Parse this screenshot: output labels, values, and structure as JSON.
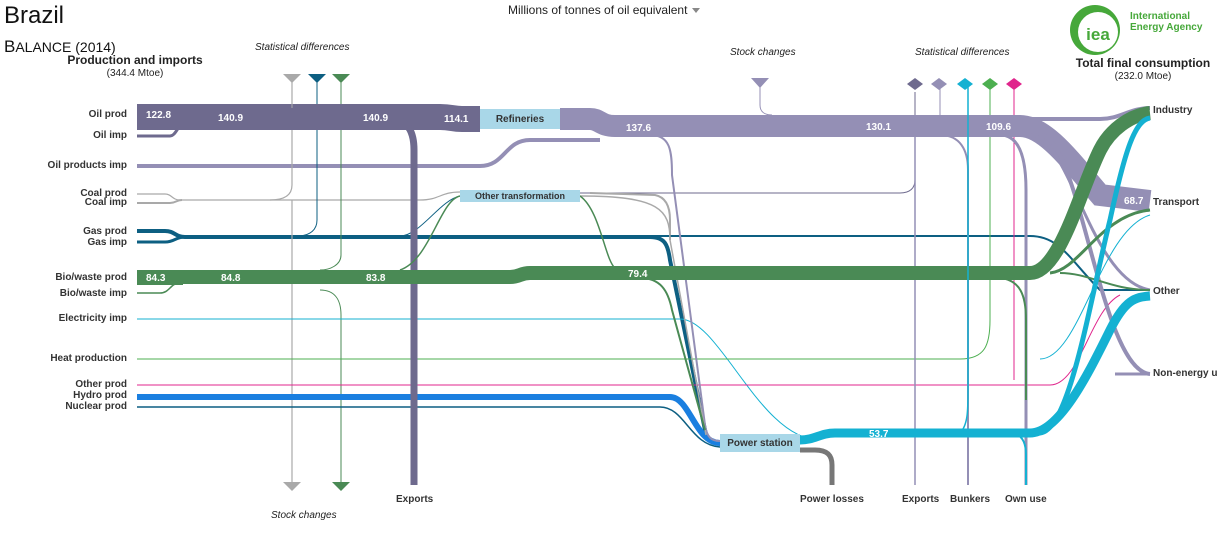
{
  "header": {
    "country": "Brazil",
    "balance_first": "B",
    "balance_rest": "ALANCE (2014)",
    "unit_selector": "Millions of tonnes of oil equivalent"
  },
  "logo": {
    "mark": "iea",
    "line1": "International",
    "line2": "Energy Agency"
  },
  "left_header": {
    "title": "Production and imports",
    "total": "(344.4 Mtoe)"
  },
  "right_header": {
    "title": "Total final consumption",
    "total": "(232.0 Mtoe)"
  },
  "annotations": {
    "stat_diff_left": "Statistical differences",
    "stat_diff_right": "Statistical differences",
    "stock_changes_top": "Stock  changes",
    "stock_changes_bottom": "Stock changes"
  },
  "sources": [
    "Oil prod",
    "Oil imp",
    "Oil products imp",
    "Coal prod",
    "Coal imp",
    "Gas prod",
    "Gas imp",
    "Bio/waste prod",
    "Bio/waste imp",
    "Electricity imp",
    "Heat production",
    "Other prod",
    "Hydro prod",
    "Nuclear prod"
  ],
  "nodes": {
    "refineries": "Refineries",
    "other_transformation": "Other transformation",
    "power_station": "Power station"
  },
  "bottom_labels": {
    "exports_left": "Exports",
    "power_losses": "Power losses",
    "exports_right": "Exports",
    "bunkers": "Bunkers",
    "own_use": "Own use"
  },
  "sinks": [
    "Industry",
    "Transport",
    "Other",
    "Non-energy u"
  ],
  "flow_values": {
    "oil_prod": "122.8",
    "oil_a": "140.9",
    "oil_b": "140.9",
    "refinery_in": "114.1",
    "refinery_out": "137.6",
    "oil_products_mid": "130.1",
    "oil_products_right": "109.6",
    "transport": "68.7",
    "bio_prod": "84.3",
    "bio_a": "84.8",
    "bio_b": "83.8",
    "bio_mid": "79.4",
    "power_out": "53.7"
  },
  "colors": {
    "oil": "#6e6a8e",
    "oil_products": "#948fb5",
    "coal": "#a9a9a9",
    "gas": "#0d5f82",
    "bio": "#4a8a55",
    "electricity": "#14b1d2",
    "heat": "#4caf50",
    "other": "#e0258c",
    "hydro": "#1a7fe0",
    "node": "#a9d7e8",
    "logo_green": "#46a83a"
  }
}
